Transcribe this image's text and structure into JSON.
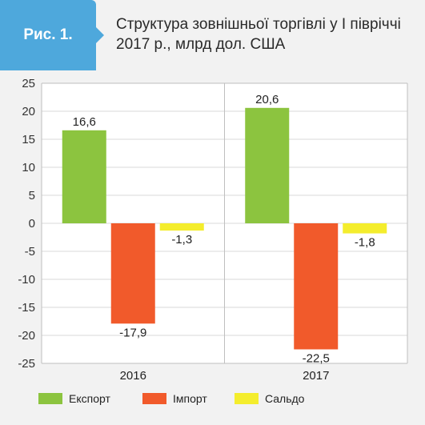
{
  "header": {
    "badge": "Рис. 1.",
    "title_line1": "Структура зовнішньої торгівлі у І півріччі",
    "title_line2": "2017 р., млрд дол. США"
  },
  "chart_data": {
    "type": "bar",
    "categories": [
      "2016",
      "2017"
    ],
    "series": [
      {
        "name": "Експорт",
        "color": "#8cc43f",
        "values": [
          16.6,
          20.6
        ],
        "labels": [
          "16,6",
          "20,6"
        ]
      },
      {
        "name": "Імпорт",
        "color": "#f15a2b",
        "values": [
          -17.9,
          -22.5
        ],
        "labels": [
          "-17,9",
          "-22,5"
        ]
      },
      {
        "name": "Сальдо",
        "color": "#f4ed2d",
        "values": [
          -1.3,
          -1.8
        ],
        "labels": [
          "-1,3",
          "-1,8"
        ]
      }
    ],
    "ylim": [
      -25,
      25
    ],
    "yticks": [
      25,
      20,
      15,
      10,
      5,
      0,
      -5,
      -10,
      -15,
      -20,
      -25
    ],
    "ytick_labels": [
      "25",
      "20",
      "15",
      "10",
      "5",
      "0",
      "-5",
      "-10",
      "-15",
      "-20",
      "-25"
    ],
    "grid": true,
    "legend": "bottom"
  }
}
